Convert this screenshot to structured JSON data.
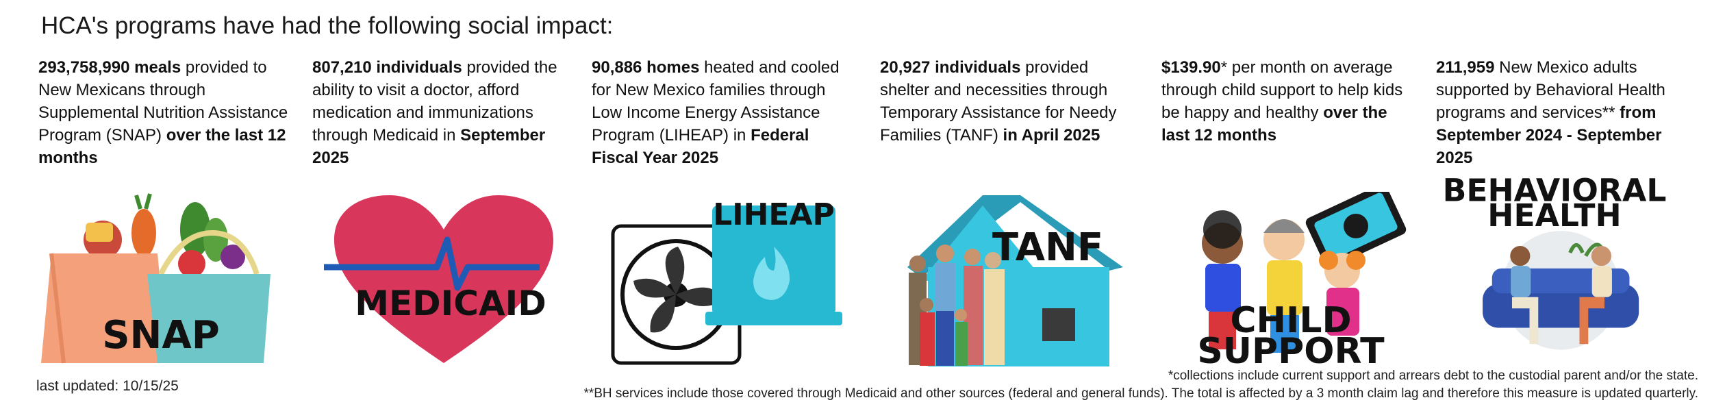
{
  "heading": "HCA's programs have had the following social impact:",
  "programs": [
    {
      "stat_bold": "293,758,990 meals",
      "text": " provided to New Mexicans through Supplemental Nutrition Assistance Program (SNAP) ",
      "tail_bold": "over the last 12 months",
      "icon_label": "SNAP"
    },
    {
      "stat_bold": "807,210 individuals",
      "text": " provided the ability to visit a doctor, afford medication and immunizations through Medicaid in ",
      "tail_bold": "September 2025",
      "icon_label": "MEDICAID"
    },
    {
      "stat_bold": "90,886 homes",
      "text": " heated and cooled for New Mexico families through Low Income Energy Assistance Program (LIHEAP) in ",
      "tail_bold": "Federal Fiscal Year 2025",
      "icon_label": "LIHEAP"
    },
    {
      "stat_bold": "20,927 individuals",
      "text": " provided shelter and necessities through Temporary Assistance for Needy Families (TANF) ",
      "tail_bold": "in April 2025",
      "icon_label": "TANF"
    },
    {
      "stat_bold": "$139.90",
      "text": "* per month on average through child support to help kids be happy and healthy ",
      "tail_bold": "over the last 12 months",
      "icon_label_line1": "CHILD",
      "icon_label_line2": "SUPPORT"
    },
    {
      "stat_bold": "211,959",
      "text": " New Mexico adults supported by Behavioral Health programs and services** ",
      "tail_bold": "from September 2024 - September 2025",
      "icon_label_line1": "BEHAVIORAL",
      "icon_label_line2": "HEALTH"
    }
  ],
  "last_updated": "last updated: 10/15/25",
  "footnote_1": "*collections include current support and arrears debt to the custodial parent and/or the state.",
  "footnote_2": "**BH services include those covered through Medicaid and other sources (federal and general funds). The total is affected by a 3 month claim lag and therefore this measure is updated quarterly.",
  "icons": [
    "grocery-bags-icon",
    "heart-pulse-icon",
    "fan-flame-icon",
    "house-family-icon",
    "happy-kids-icon",
    "therapy-session-icon"
  ],
  "colors": {
    "snap_bag": "#f4a07a",
    "snap_tote": "#6ec6c8",
    "medicaid_heart": "#d8365a",
    "pulse_line": "#1f5bb5",
    "liheap_teal": "#28b9d2",
    "tanf_house": "#37c5e0",
    "bh_sofa": "#2f4fa8"
  }
}
